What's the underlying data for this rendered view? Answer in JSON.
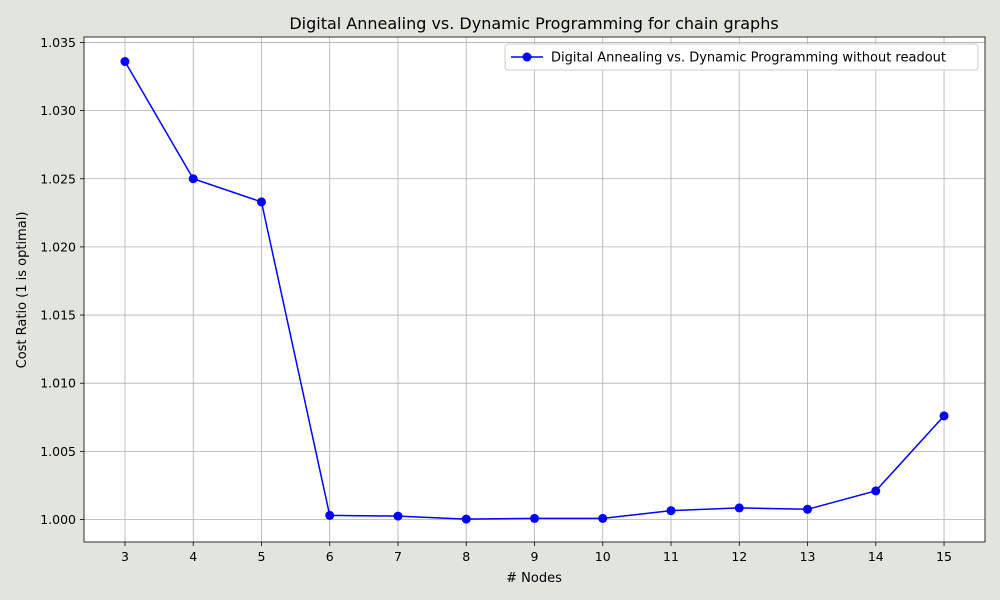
{
  "chart_data": {
    "type": "line",
    "title": "Digital Annealing vs. Dynamic Programming for chain graphs",
    "xlabel": "# Nodes",
    "ylabel": "Cost Ratio (1 is optimal)",
    "x": [
      3,
      4,
      5,
      6,
      7,
      8,
      9,
      10,
      11,
      12,
      13,
      14,
      15
    ],
    "series": [
      {
        "name": "Digital Annealing vs. Dynamic Programming without readout",
        "color": "#0000ff",
        "marker": "circle",
        "values": [
          1.0336,
          1.025,
          1.0233,
          1.0003,
          1.00025,
          1.00003,
          1.00008,
          1.00008,
          1.00065,
          1.00085,
          1.00075,
          1.0021,
          1.0076
        ]
      }
    ],
    "xlim": [
      2.4,
      15.6
    ],
    "ylim": [
      0.99835,
      1.0354
    ],
    "xticks": [
      3,
      4,
      5,
      6,
      7,
      8,
      9,
      10,
      11,
      12,
      13,
      14,
      15
    ],
    "yticks": [
      1.0,
      1.005,
      1.01,
      1.015,
      1.02,
      1.025,
      1.03,
      1.035
    ],
    "ytick_labels": [
      "1.000",
      "1.005",
      "1.010",
      "1.015",
      "1.020",
      "1.025",
      "1.030",
      "1.035"
    ],
    "grid": true,
    "legend_position": "top-right",
    "colors": {
      "background": "#e2e4de",
      "plot_background": "#ffffff",
      "grid": "#b0b0b0"
    }
  }
}
